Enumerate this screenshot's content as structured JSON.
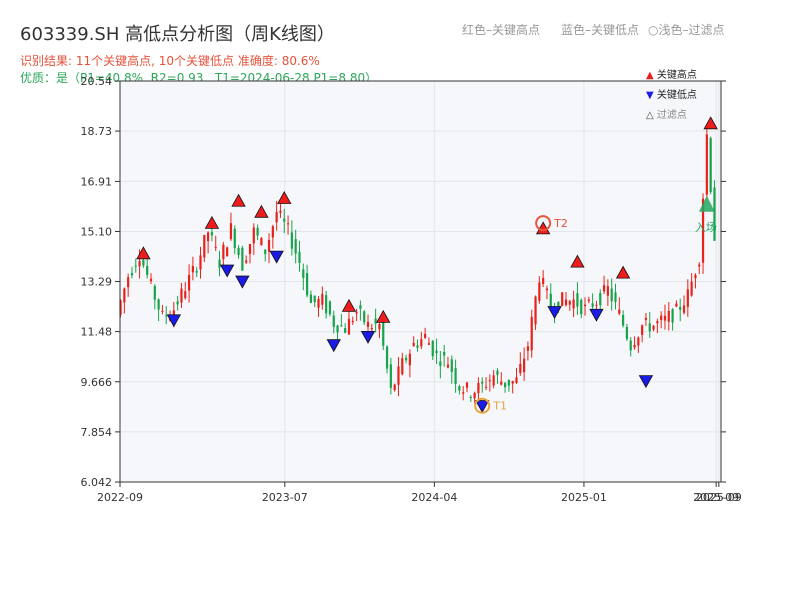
{
  "header": {
    "title": "603339.SH 高低点分析图（周K线图）",
    "legend_red": "红色–关键高点",
    "legend_blue": "蓝色–关键低点",
    "legend_light_marker": "○",
    "legend_light": "浅色–过滤点",
    "result": "识别结果: 11个关键高点, 10个关键低点  准确度: 80.6%",
    "quality": "优质：是（P1=40.8%, R2=0.93 , T1=2024-06-28 P1=8.80）"
  },
  "marker_legend": {
    "high": "关键高点",
    "low": "关键低点",
    "filtered": "过滤点"
  },
  "colors": {
    "up": "#e8211b",
    "down": "#16a34a",
    "high_marker": "#ee1c1c",
    "low_marker": "#1b1be8",
    "t1": "#e8a33a",
    "t2": "#e8543c",
    "entry": "#22a860",
    "plot_bg": "#f5f7fa"
  },
  "chart_data": {
    "type": "candlestick",
    "y_ticks": [
      "6.042",
      "7.854",
      "9.666",
      "11.48",
      "13.29",
      "15.10",
      "16.91",
      "18.73",
      "20.54"
    ],
    "ylim": [
      6.042,
      20.54
    ],
    "x_ticks": [
      "2022-09",
      "2023-07",
      "2024-04",
      "2025-01",
      "2025-09",
      "2025-09"
    ],
    "xlim": [
      "2022-09-01",
      "2025-09-10"
    ],
    "grid": true,
    "closes": [
      [
        "2022-09-02",
        12.1
      ],
      [
        "2022-09-23",
        13.5
      ],
      [
        "2022-10-14",
        14.3
      ],
      [
        "2022-11-04",
        13.1
      ],
      [
        "2022-11-25",
        12.0
      ],
      [
        "2022-12-16",
        12.3
      ],
      [
        "2023-01-06",
        13.1
      ],
      [
        "2023-01-27",
        13.9
      ],
      [
        "2023-02-17",
        15.1
      ],
      [
        "2023-03-10",
        14.0
      ],
      [
        "2023-03-31",
        15.2
      ],
      [
        "2023-04-21",
        13.9
      ],
      [
        "2023-05-12",
        15.1
      ],
      [
        "2023-06-02",
        14.4
      ],
      [
        "2023-06-23",
        15.8
      ],
      [
        "2023-07-14",
        15.1
      ],
      [
        "2023-08-04",
        14.0
      ],
      [
        "2023-08-25",
        12.5
      ],
      [
        "2023-09-15",
        12.6
      ],
      [
        "2023-10-06",
        11.8
      ],
      [
        "2023-10-27",
        11.6
      ],
      [
        "2023-11-17",
        12.2
      ],
      [
        "2023-12-08",
        11.7
      ],
      [
        "2023-12-29",
        11.7
      ],
      [
        "2024-01-19",
        9.3
      ],
      [
        "2024-02-09",
        10.3
      ],
      [
        "2024-03-01",
        11.0
      ],
      [
        "2024-03-22",
        11.3
      ],
      [
        "2024-04-12",
        10.6
      ],
      [
        "2024-05-03",
        10.4
      ],
      [
        "2024-05-24",
        9.5
      ],
      [
        "2024-06-14",
        9.3
      ],
      [
        "2024-07-05",
        9.5
      ],
      [
        "2024-07-26",
        9.9
      ],
      [
        "2024-08-16",
        9.6
      ],
      [
        "2024-09-06",
        9.7
      ],
      [
        "2024-09-27",
        11.0
      ],
      [
        "2024-10-18",
        13.5
      ],
      [
        "2024-11-08",
        12.4
      ],
      [
        "2024-11-29",
        12.6
      ],
      [
        "2024-12-20",
        12.6
      ],
      [
        "2025-01-10",
        12.3
      ],
      [
        "2025-01-31",
        12.6
      ],
      [
        "2025-02-21",
        13.0
      ],
      [
        "2025-03-14",
        12.1
      ],
      [
        "2025-04-04",
        11.0
      ],
      [
        "2025-04-25",
        11.7
      ],
      [
        "2025-05-16",
        11.7
      ],
      [
        "2025-06-06",
        11.9
      ],
      [
        "2025-06-27",
        12.2
      ],
      [
        "2025-07-18",
        12.8
      ],
      [
        "2025-08-08",
        14.2
      ],
      [
        "2025-08-22",
        18.6
      ],
      [
        "2025-09-05",
        14.9
      ]
    ],
    "key_highs": [
      {
        "date": "2022-10-14",
        "value": 14.3
      },
      {
        "date": "2023-02-17",
        "value": 15.4
      },
      {
        "date": "2023-04-07",
        "value": 16.2
      },
      {
        "date": "2023-05-19",
        "value": 15.8
      },
      {
        "date": "2023-06-30",
        "value": 16.3
      },
      {
        "date": "2023-10-27",
        "value": 12.4
      },
      {
        "date": "2023-12-29",
        "value": 12.0
      },
      {
        "date": "2024-10-18",
        "value": 15.2
      },
      {
        "date": "2024-12-20",
        "value": 14.0
      },
      {
        "date": "2025-03-14",
        "value": 13.6
      },
      {
        "date": "2025-08-22",
        "value": 19.0
      }
    ],
    "key_lows": [
      {
        "date": "2022-12-09",
        "value": 11.9
      },
      {
        "date": "2023-03-17",
        "value": 13.7
      },
      {
        "date": "2023-04-14",
        "value": 13.3
      },
      {
        "date": "2023-06-16",
        "value": 14.2
      },
      {
        "date": "2023-09-29",
        "value": 11.0
      },
      {
        "date": "2023-12-01",
        "value": 11.3
      },
      {
        "date": "2024-06-28",
        "value": 8.8
      },
      {
        "date": "2024-11-08",
        "value": 12.2
      },
      {
        "date": "2025-01-24",
        "value": 12.1
      },
      {
        "date": "2025-04-25",
        "value": 9.7
      }
    ],
    "annotations": [
      {
        "label": "T1",
        "text": "T1",
        "date": "2024-06-28",
        "value": 8.8
      },
      {
        "label": "T2",
        "text": "T2",
        "date": "2024-10-18",
        "value": 15.4
      },
      {
        "label": "entry",
        "text": "入场",
        "date": "2025-08-15",
        "value": 16.1
      }
    ]
  }
}
